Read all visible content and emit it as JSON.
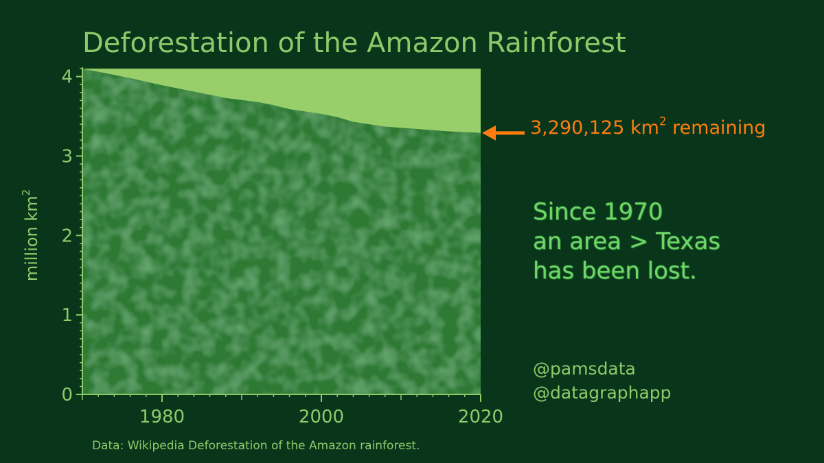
{
  "chart_data": {
    "type": "area",
    "title": "Deforestation of the Amazon Rainforest",
    "ylabel_text": "million km",
    "ylabel_sup": "2",
    "x": [
      1970,
      1976,
      1980,
      1984,
      1988,
      1992,
      1994,
      1996,
      2000,
      2002,
      2004,
      2006,
      2008,
      2012,
      2016,
      2020
    ],
    "values": [
      4.1,
      3.98,
      3.89,
      3.81,
      3.73,
      3.68,
      3.64,
      3.59,
      3.53,
      3.49,
      3.43,
      3.4,
      3.37,
      3.34,
      3.31,
      3.29
    ],
    "xlim": [
      1970,
      2020
    ],
    "ylim": [
      0,
      4.1
    ],
    "xticks": [
      1980,
      2000,
      2020
    ],
    "yticks": [
      0,
      1,
      2,
      3,
      4
    ],
    "grid": false,
    "colors": {
      "background": "#09361b",
      "text": "#8dca6a",
      "lost_area": "#98cf6b",
      "forest": "#2f7a36",
      "forest_dark": "#163f1f",
      "forest_light": "#53a14b",
      "callout": "#ff7d0e",
      "message": "#6fd768"
    },
    "annotation": {
      "value_text": "3,290,125 km",
      "sup": "2",
      "suffix": " remaining"
    }
  },
  "message": {
    "lines": [
      "Since 1970",
      "an area > Texas",
      "has been lost."
    ]
  },
  "credits": [
    "@pamsdata",
    "@datagraphapp"
  ],
  "source": "Data:  Wikipedia Deforestation of the Amazon rainforest."
}
